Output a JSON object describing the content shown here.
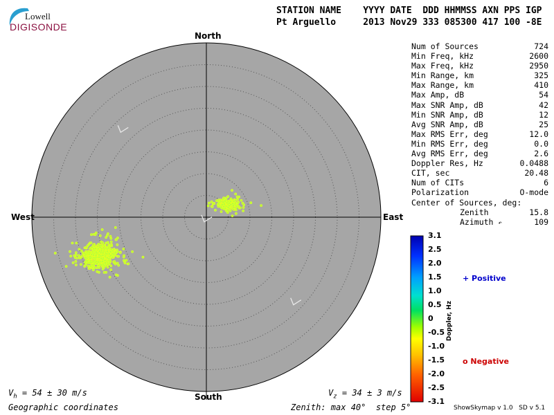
{
  "logo": {
    "lowell": "Lowell",
    "digisonde": "DIGISONDE"
  },
  "header": {
    "line1": "STATION NAME    YYYY DATE  DDD HHMMSS AXN PPS IGP",
    "line2": "Pt Arguello     2013 Nov29 333 085300 417 100 -8E"
  },
  "stats": [
    {
      "label": "Num of Sources",
      "value": "724"
    },
    {
      "label": "Min Freq, kHz",
      "value": "2600"
    },
    {
      "label": "Max Freq, kHz",
      "value": "2950"
    },
    {
      "label": "Min Range, km",
      "value": "325"
    },
    {
      "label": "Max Range, km",
      "value": "410"
    },
    {
      "label": "Max Amp, dB",
      "value": "54"
    },
    {
      "label": "Max SNR Amp, dB",
      "value": "42"
    },
    {
      "label": "Min SNR Amp, dB",
      "value": "12"
    },
    {
      "label": "Avg SNR Amp, dB",
      "value": "25"
    },
    {
      "label": "Max RMS Err, deg",
      "value": "12.0"
    },
    {
      "label": "Min RMS Err, deg",
      "value": "0.0"
    },
    {
      "label": "Avg RMS Err, deg",
      "value": "2.6"
    },
    {
      "label": "Doppler Res, Hz",
      "value": "0.0488"
    },
    {
      "label": "CIT, sec",
      "value": "20.48"
    },
    {
      "label": "Num of CITs",
      "value": "6"
    },
    {
      "label": "Polarization",
      "value": "O-mode"
    }
  ],
  "center": {
    "title": "Center of Sources, deg:",
    "zenith_label": "Zenith",
    "zenith_value": "15.8",
    "azimuth_label": "Azimuth",
    "azimuth_value": "109"
  },
  "compass": {
    "north": "North",
    "south": "South",
    "east": "East",
    "west": "West"
  },
  "colorbar": {
    "label": "Doppler, Hz",
    "ticks": [
      "3.1",
      "2.5",
      "2.0",
      "1.5",
      "1.0",
      "0.5",
      "0",
      "-0.5",
      "-1.0",
      "-1.5",
      "-2.0",
      "-2.5",
      "-3.1"
    ],
    "positive": "+ Positive",
    "negative": "o Negative"
  },
  "footer": {
    "vh": "V",
    "vh_sub": "h",
    "vh_text": " = 54 ± 30 m/s",
    "vz": "V",
    "vz_sub": "z",
    "vz_text": " = 34 ± 3 m/s",
    "coords": "Geographic coordinates",
    "zenith": "Zenith: max 40°  step 5°",
    "version": "ShowSkymap v 1.0   SD v 5.1"
  },
  "colors": {
    "disk": "#a6a6a6",
    "point": "#b6ff3a",
    "point_edge": "#e8ff20"
  },
  "chart_data": {
    "type": "scatter",
    "description_units": "zenith (deg) / azimuth (deg)",
    "zenith_max": 40,
    "zenith_step": 5,
    "clusters": [
      {
        "center_zenith": 6,
        "center_azimuth": 60,
        "count": 170
      },
      {
        "center_zenith": 26,
        "center_azimuth": 250,
        "count": 554
      }
    ],
    "direction_arrows": [
      {
        "zenith": 28,
        "azimuth": 315
      },
      {
        "zenith": 1,
        "azimuth": 220
      },
      {
        "zenith": 28,
        "azimuth": 135
      }
    ]
  }
}
